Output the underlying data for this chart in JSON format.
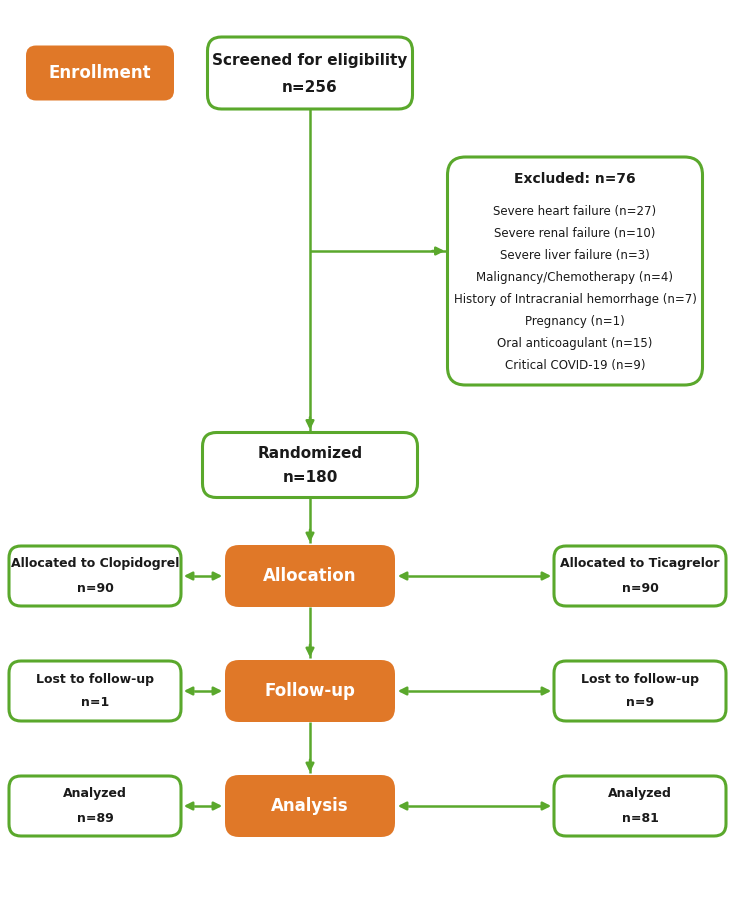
{
  "bg_color": "#ffffff",
  "orange_color": "#E07828",
  "green_border_color": "#5AA82C",
  "green_arrow_color": "#5AA82C",
  "white_box_bg": "#ffffff",
  "text_dark": "#1a1a1a",
  "text_white": "#ffffff",
  "enrollment_label": "Enrollment",
  "screened_title": "Screened for eligibility",
  "screened_n": "n=256",
  "excluded_title": "Excluded: n=76",
  "excluded_items": [
    "Severe heart failure (n=27)",
    "Severe renal failure (n=10)",
    "Severe liver failure (n=3)",
    "Malignancy/Chemotherapy (n=4)",
    "History of Intracranial hemorrhage (n=7)",
    "Pregnancy (n=1)",
    "Oral anticoagulant (n=15)",
    "Critical COVID-19 (n=9)"
  ],
  "randomized_title": "Randomized",
  "randomized_n": "n=180",
  "allocation_label": "Allocation",
  "alloc_clop_line1": "Allocated to Clopidogrel",
  "alloc_clop_n": "n=90",
  "alloc_tica_line1": "Allocated to Ticagrelor",
  "alloc_tica_n": "n=90",
  "followup_label": "Follow-up",
  "lost_clop_line1": "Lost to follow-up",
  "lost_clop_n": "n=1",
  "lost_tica_line1": "Lost to follow-up",
  "lost_tica_n": "n=9",
  "analysis_label": "Analysis",
  "analyzed_clop_line1": "Analyzed",
  "analyzed_clop_n": "n=89",
  "analyzed_tica_line1": "Analyzed",
  "analyzed_tica_n": "n=81",
  "fig_w": 7.55,
  "fig_h": 9.17,
  "dpi": 100
}
